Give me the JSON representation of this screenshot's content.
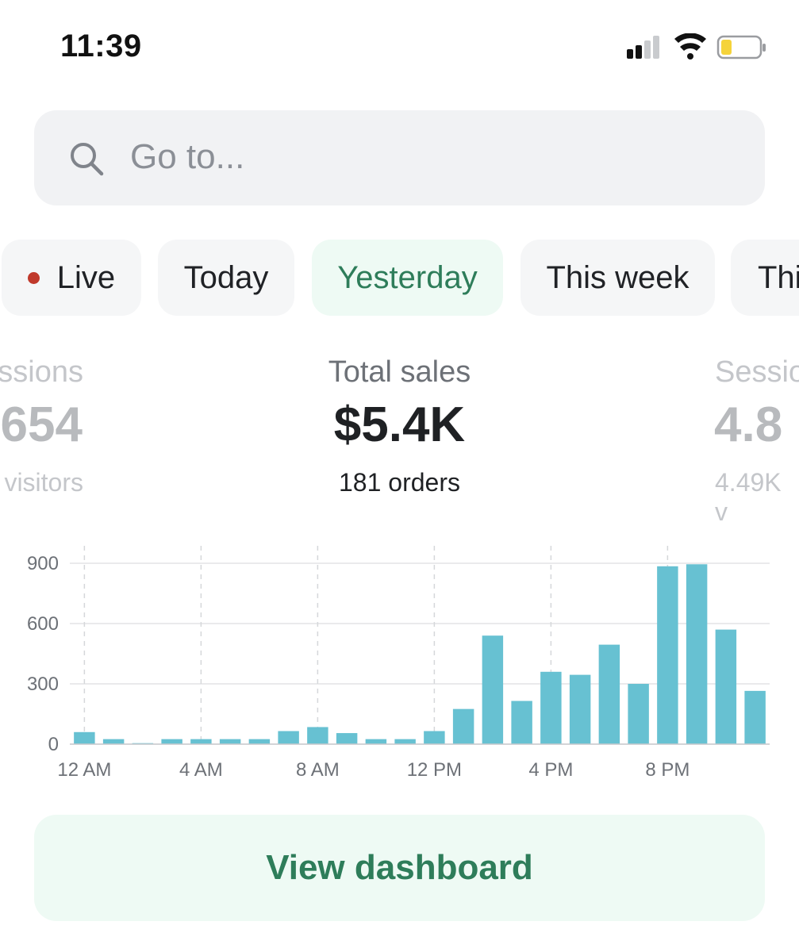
{
  "status_bar": {
    "time": "11:39",
    "icons": [
      "cellular-signal-icon",
      "wifi-icon",
      "battery-low-icon"
    ]
  },
  "search": {
    "placeholder": "Go to...",
    "icon": "search-icon"
  },
  "date_filters": [
    {
      "label": "Live",
      "has_live_dot": true,
      "selected": false
    },
    {
      "label": "Today",
      "selected": false
    },
    {
      "label": "Yesterday",
      "selected": true
    },
    {
      "label": "This week",
      "selected": false
    },
    {
      "label": "Thi",
      "selected": false
    }
  ],
  "metrics": [
    {
      "label": "ssions",
      "value": "654",
      "sub": "visitors",
      "state": "dimmed"
    },
    {
      "label": "Total sales",
      "value": "$5.4K",
      "sub": "181 orders",
      "state": "active"
    },
    {
      "label": "Sessio",
      "value": "4.8",
      "sub": "4.49K v",
      "state": "dimmed"
    }
  ],
  "chart_data": {
    "type": "bar",
    "title": "",
    "xlabel": "",
    "ylabel": "",
    "categories": [
      "12 AM",
      "1 AM",
      "2 AM",
      "3 AM",
      "4 AM",
      "5 AM",
      "6 AM",
      "7 AM",
      "8 AM",
      "9 AM",
      "10 AM",
      "11 AM",
      "12 PM",
      "1 PM",
      "2 PM",
      "3 PM",
      "4 PM",
      "5 PM",
      "6 PM",
      "7 PM",
      "8 PM",
      "9 PM",
      "10 PM",
      "11 PM"
    ],
    "x_tick_labels": [
      "12 AM",
      "4 AM",
      "8 AM",
      "12 PM",
      "4 PM",
      "8 PM"
    ],
    "values": [
      60,
      25,
      5,
      25,
      25,
      25,
      25,
      65,
      85,
      55,
      25,
      25,
      65,
      175,
      540,
      215,
      360,
      345,
      495,
      300,
      885,
      895,
      570,
      265
    ],
    "y_ticks": [
      0,
      300,
      600,
      900
    ],
    "ylim": [
      0,
      900
    ],
    "grid": true,
    "bar_color": "#67c1d2"
  },
  "actions": {
    "view_dashboard": "View dashboard"
  },
  "colors": {
    "accent_green": "#2e7d5a",
    "chip_selected_bg": "#eefaf4",
    "live_dot": "#c0392b",
    "battery_level": "#f5d33b"
  }
}
